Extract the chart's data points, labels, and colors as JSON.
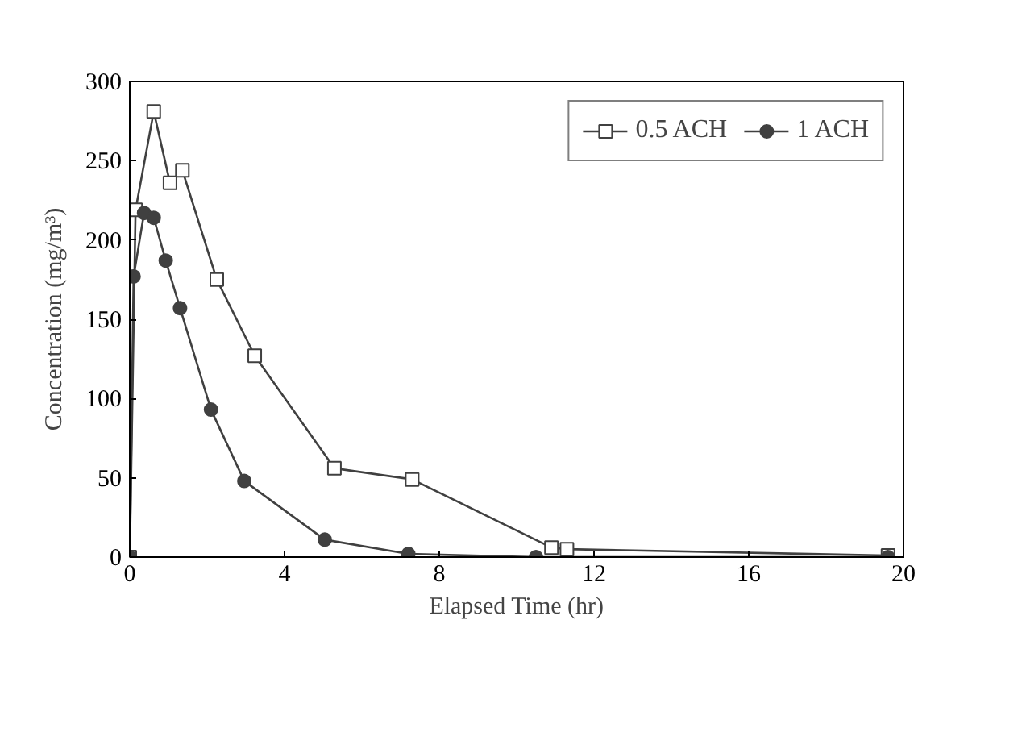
{
  "chart_data": {
    "type": "line",
    "xlabel": "Elapsed Time (hr)",
    "ylabel": "Concentration (mg/m³)",
    "xlim": [
      0,
      20
    ],
    "ylim": [
      0,
      300
    ],
    "xticks": [
      0,
      4,
      8,
      12,
      16,
      20
    ],
    "yticks": [
      0,
      50,
      100,
      150,
      200,
      250,
      300
    ],
    "grid": false,
    "legend": "top right",
    "series": [
      {
        "name": "0.5 ACH",
        "color": "#404040",
        "marker": "square",
        "x": [
          0,
          0.15,
          0.62,
          1.04,
          1.36,
          2.25,
          3.23,
          5.29,
          7.3,
          10.9,
          11.3,
          19.6
        ],
        "values": [
          0,
          219,
          281,
          236,
          244,
          175,
          127,
          56,
          49,
          6,
          5,
          1
        ]
      },
      {
        "name": "1 ACH",
        "color": "#404040",
        "marker": "circle",
        "x": [
          0,
          0.1,
          0.37,
          0.62,
          0.93,
          1.3,
          2.1,
          2.96,
          5.04,
          7.2,
          10.5,
          19.6
        ],
        "values": [
          0,
          177,
          217,
          214,
          187,
          157,
          93,
          48,
          11,
          2,
          0,
          0
        ]
      }
    ]
  }
}
